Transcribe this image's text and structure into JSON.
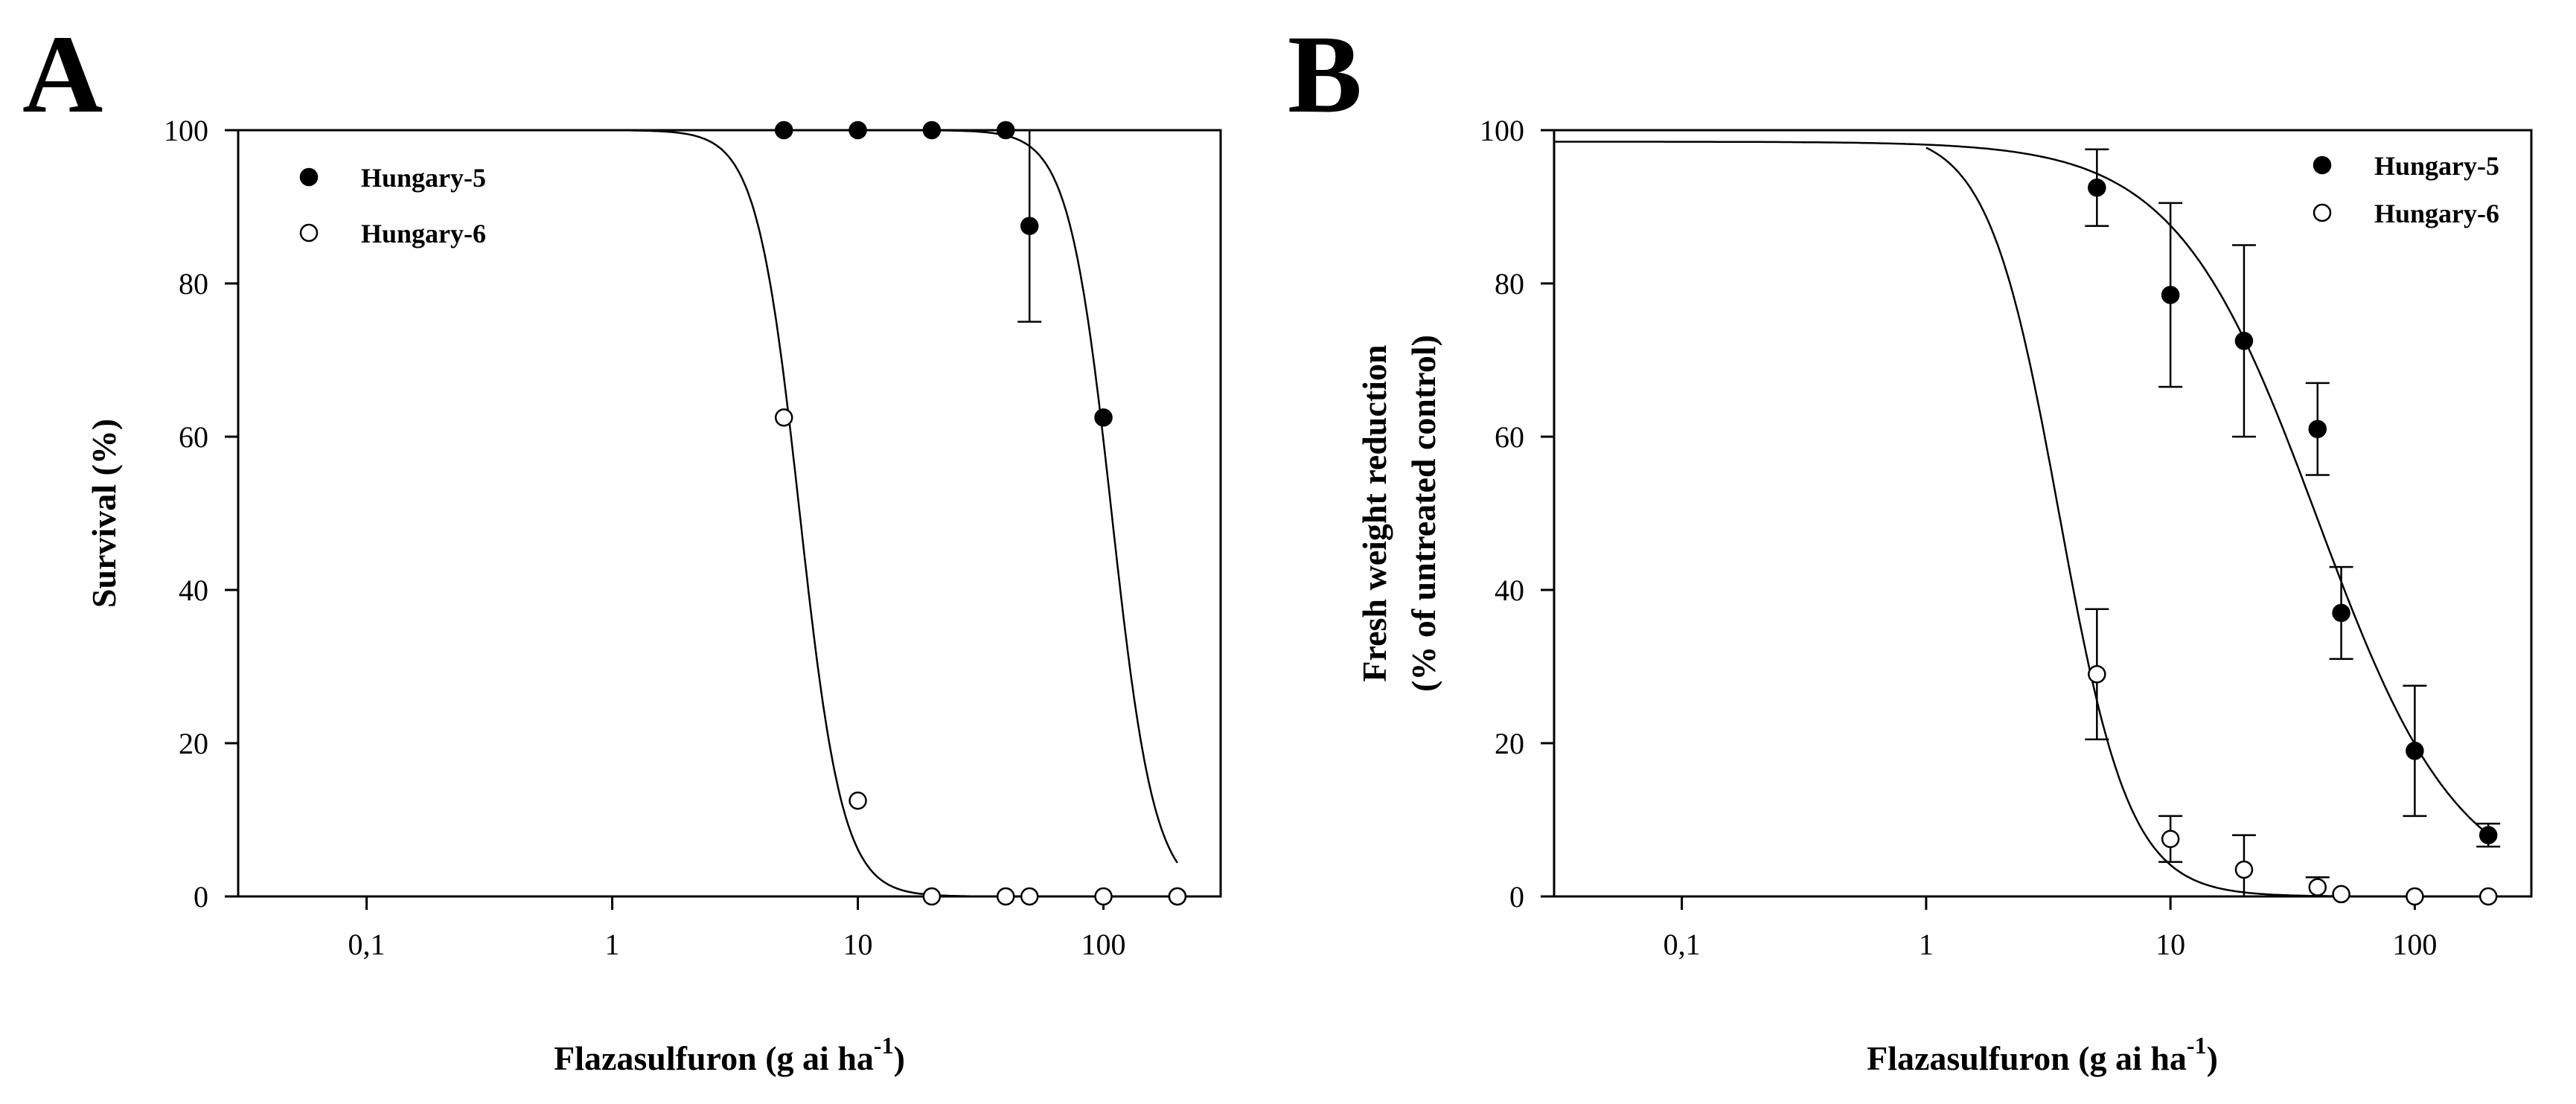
{
  "chart_data": [
    {
      "type": "scatter",
      "panel_label": "A",
      "xlabel": "Flazasulfuron (g ai ha",
      "xlabel_superscript": "-1",
      "xlabel_close": ")",
      "ylabel_lines": [
        "Survival (%)"
      ],
      "x_scale": "log",
      "xlim": [
        0.03,
        300
      ],
      "ylim": [
        0,
        100
      ],
      "x_ticks": [
        0.1,
        1,
        10,
        100
      ],
      "x_tick_labels": [
        "0,1",
        "1",
        "10",
        "100"
      ],
      "y_ticks": [
        0,
        20,
        40,
        60,
        80,
        100
      ],
      "y_tick_labels": [
        "0",
        "20",
        "40",
        "60",
        "80",
        "100"
      ],
      "grid": false,
      "legend_position": "top-left",
      "series": [
        {
          "name": "Hungary-5",
          "marker": "filled-circle",
          "points": [
            {
              "x": 5,
              "y": 100
            },
            {
              "x": 10,
              "y": 100
            },
            {
              "x": 20,
              "y": 100
            },
            {
              "x": 40,
              "y": 100
            },
            {
              "x": 50,
              "y": 87.5,
              "err": 12.5
            },
            {
              "x": 100,
              "y": 62.5
            },
            {
              "x": 200,
              "y": 0
            }
          ],
          "fit": {
            "top": 100,
            "ed50": 108,
            "slope": 5,
            "xmin": 5,
            "xmax": 200
          }
        },
        {
          "name": "Hungary-6",
          "marker": "open-circle",
          "points": [
            {
              "x": 5,
              "y": 62.5
            },
            {
              "x": 10,
              "y": 12.5
            },
            {
              "x": 20,
              "y": 0
            },
            {
              "x": 40,
              "y": 0
            },
            {
              "x": 50,
              "y": 0
            },
            {
              "x": 100,
              "y": 0
            },
            {
              "x": 200,
              "y": 0
            }
          ],
          "fit": {
            "top": 100,
            "ed50": 5.8,
            "slope": 5,
            "xmin": 1,
            "xmax": 200
          }
        }
      ]
    },
    {
      "type": "scatter",
      "panel_label": "B",
      "xlabel": "Flazasulfuron (g ai ha",
      "xlabel_superscript": "-1",
      "xlabel_close": ")",
      "ylabel_lines": [
        "Fresh weight reduction",
        "(% of untreated control)"
      ],
      "x_scale": "log",
      "xlim": [
        0.03,
        300
      ],
      "ylim": [
        0,
        100
      ],
      "x_ticks": [
        0.1,
        1,
        10,
        100
      ],
      "x_tick_labels": [
        "0,1",
        "1",
        "10",
        "100"
      ],
      "y_ticks": [
        0,
        20,
        40,
        60,
        80,
        100
      ],
      "y_tick_labels": [
        "0",
        "20",
        "40",
        "60",
        "80",
        "100"
      ],
      "grid": false,
      "legend_position": "top-right",
      "series": [
        {
          "name": "Hungary-5",
          "marker": "filled-circle",
          "points": [
            {
              "x": 5,
              "y": 92.5,
              "err": 5
            },
            {
              "x": 10,
              "y": 78.5,
              "err": 12
            },
            {
              "x": 20,
              "y": 72.5,
              "err": 12.5
            },
            {
              "x": 40,
              "y": 61,
              "err": 6
            },
            {
              "x": 50,
              "y": 37,
              "err": 6
            },
            {
              "x": 100,
              "y": 19,
              "err": 8.5
            },
            {
              "x": 200,
              "y": 8,
              "err": 1.5
            }
          ],
          "fit": {
            "top": 98.5,
            "ed50": 40,
            "slope": 1.5,
            "xmin": 0.03,
            "xmax": 200
          }
        },
        {
          "name": "Hungary-6",
          "marker": "open-circle",
          "points": [
            {
              "x": 5,
              "y": 29,
              "err": 8.5
            },
            {
              "x": 10,
              "y": 7.5,
              "err": 3
            },
            {
              "x": 20,
              "y": 3.5,
              "err": 4.5
            },
            {
              "x": 40,
              "y": 1.2,
              "err": 1.3
            },
            {
              "x": 50,
              "y": 0.3
            },
            {
              "x": 100,
              "y": 0
            },
            {
              "x": 200,
              "y": 0
            }
          ],
          "fit": {
            "top": 100,
            "ed50": 3.5,
            "slope": 3,
            "xmin": 1,
            "xmax": 200
          }
        }
      ]
    }
  ]
}
